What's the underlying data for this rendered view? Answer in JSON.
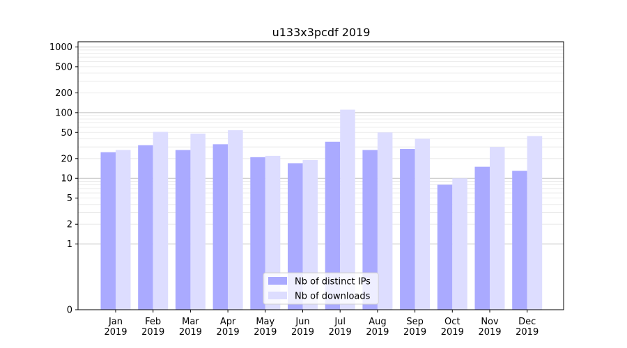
{
  "chart_data": {
    "type": "bar",
    "title": "u133x3pcdf 2019",
    "categories": [
      "Jan\n2019",
      "Feb\n2019",
      "Mar\n2019",
      "Apr\n2019",
      "May\n2019",
      "Jun\n2019",
      "Jul\n2019",
      "Aug\n2019",
      "Sep\n2019",
      "Oct\n2019",
      "Nov\n2019",
      "Dec\n2019"
    ],
    "series": [
      {
        "name": "Nb of distinct IPs",
        "color": "#aaaaff",
        "values": [
          25,
          32,
          27,
          33,
          21,
          17,
          36,
          27,
          28,
          8,
          15,
          13
        ]
      },
      {
        "name": "Nb of downloads",
        "color": "#ddddff",
        "values": [
          27,
          51,
          48,
          54,
          22,
          19,
          111,
          50,
          40,
          10,
          30,
          44
        ]
      }
    ],
    "yscale": "symlog",
    "ylim": [
      0,
      1200
    ],
    "yticks": [
      0,
      1,
      2,
      5,
      10,
      20,
      50,
      100,
      200,
      500,
      1000
    ],
    "ytick_labels": [
      "0",
      "1",
      "2",
      "5",
      "10",
      "20",
      "50",
      "100",
      "200",
      "500",
      "1000"
    ],
    "grid": true,
    "legend_position": "bottom-center",
    "xlabel": "",
    "ylabel": ""
  }
}
